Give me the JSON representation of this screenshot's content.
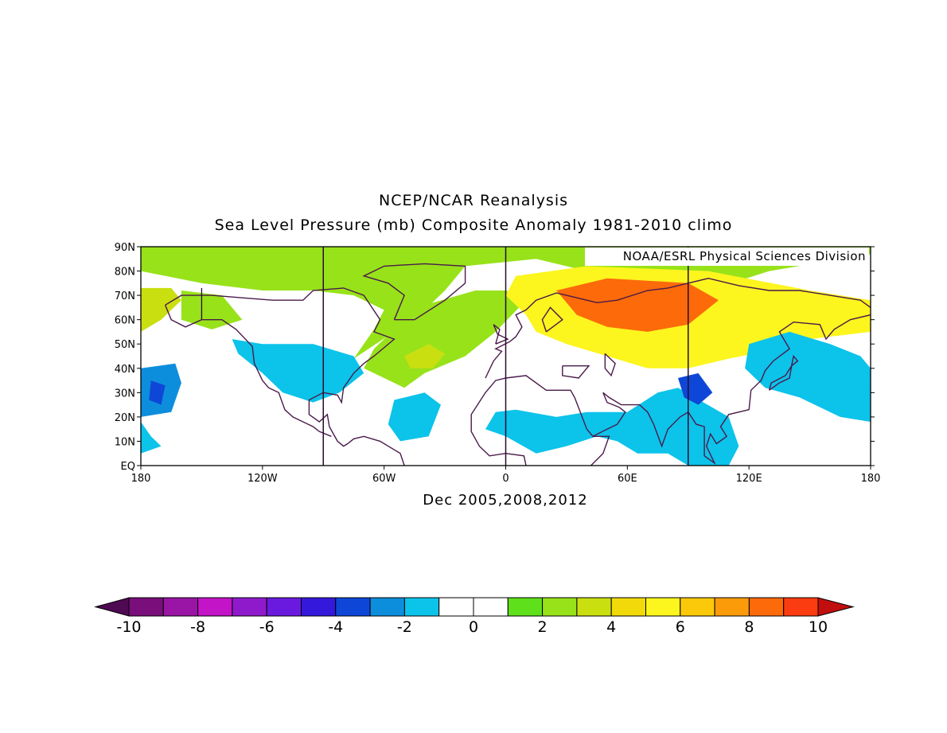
{
  "header": {
    "line1": "NCEP/NCAR Reanalysis",
    "line2": "Sea Level Pressure (mb) Composite Anomaly 1981-2010 climo"
  },
  "credit": "NOAA/ESRL Physical Sciences Division",
  "subtitle": "Dec 2005,2008,2012",
  "map": {
    "lat_labels": [
      "90N",
      "80N",
      "70N",
      "60N",
      "50N",
      "40N",
      "30N",
      "20N",
      "10N",
      "EQ"
    ],
    "lon_labels": [
      "180",
      "120W",
      "60W",
      "0",
      "60E",
      "120E",
      "180"
    ],
    "lon_range": [
      -180,
      180
    ],
    "lat_range": [
      0,
      90
    ],
    "meridian_lines_lon": [
      -90,
      0,
      90
    ],
    "anomaly_regions": [
      {
        "name": "arctic-positive",
        "value": 2
      },
      {
        "name": "west-pacific-positive",
        "value": 3
      },
      {
        "name": "alaska-positive",
        "value": 2
      },
      {
        "name": "north-atlantic-positive",
        "value": 2
      },
      {
        "name": "atlantic-core-positive",
        "value": 3
      },
      {
        "name": "siberia-positive",
        "value": 5
      },
      {
        "name": "siberia-core-positive",
        "value": 8
      },
      {
        "name": "north-america-negative",
        "value": -2
      },
      {
        "name": "north-pacific-negative",
        "value": -3
      },
      {
        "name": "central-pacific-core",
        "value": -4
      },
      {
        "name": "subtropical-atlantic-negative",
        "value": -2
      },
      {
        "name": "africa-india-negative",
        "value": -2
      },
      {
        "name": "east-asia-negative",
        "value": -2
      },
      {
        "name": "tibet-core-negative",
        "value": -4
      },
      {
        "name": "east-pacific-negative",
        "value": -2
      }
    ]
  },
  "colorbar": {
    "labels": [
      "-10",
      "-8",
      "-6",
      "-4",
      "-2",
      "0",
      "2",
      "4",
      "6",
      "8",
      "10"
    ],
    "colors": [
      "#7a0e7a",
      "#9a14a6",
      "#c314c8",
      "#8f1acb",
      "#6a1adf",
      "#3418dc",
      "#0e47d8",
      "#0d8edc",
      "#0cc3ea",
      "#ffffff",
      "#ffffff",
      "#5ee01a",
      "#98e21a",
      "#cadf10",
      "#f2da0a",
      "#fcf51e",
      "#fcc80a",
      "#fc9b0a",
      "#fc6a0a",
      "#fa3c10"
    ],
    "under_color": "#4e0a52",
    "over_color": "#c10f0f"
  }
}
